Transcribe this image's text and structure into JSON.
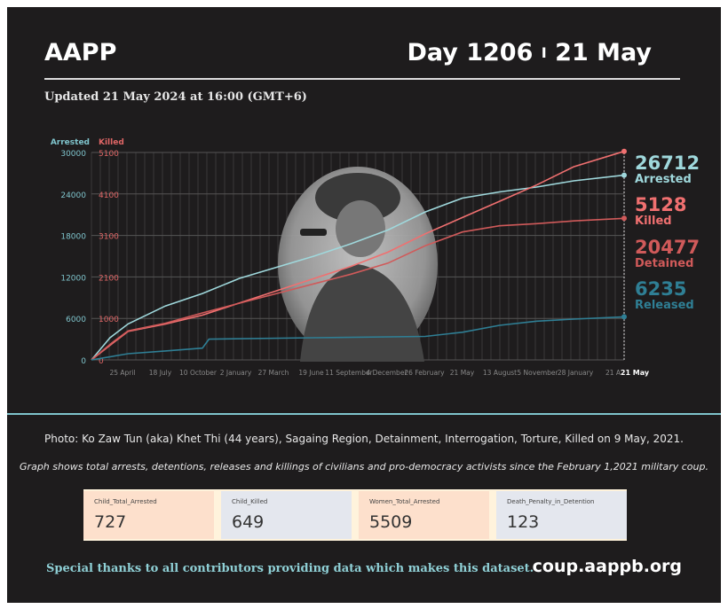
{
  "header": {
    "brand": "AAPP",
    "day": "Day 1206",
    "sep": "I",
    "date": "21 May",
    "updated": "Updated 21 May 2024 at 16:00 (GMT+6)"
  },
  "captions": {
    "photo": "Photo: Ko Zaw Tun (aka) Khet Thi (44 years), Sagaing Region, Detainment, Interrogation, Torture, Killed on 9 May, 2021.",
    "graph": "Graph shows total arrests, detentions, releases and killings of civilians and pro-democracy activists since the February 1,2021 military coup."
  },
  "cards": [
    {
      "label": "Child_Total_Arrested",
      "value": "727",
      "color": "#fde0cc"
    },
    {
      "label": "Child_Killed",
      "value": "649",
      "color": "#e4e7ee"
    },
    {
      "label": "Women_Total_Arrested",
      "value": "5509",
      "color": "#fde0cc"
    },
    {
      "label": "Death_Penalty_in_Detention",
      "value": "123",
      "color": "#e4e7ee"
    }
  ],
  "footer": {
    "thanks": "Special thanks to all contributors providing data which makes this dataset.",
    "site": "coup.aappb.org"
  },
  "chart_data": {
    "type": "line",
    "grid": true,
    "x_range": [
      "2021-02-01",
      "2024-05-21"
    ],
    "left_axis": {
      "label": "Arrested",
      "ticks": [
        "0",
        "6000",
        "12000",
        "18000",
        "24000",
        "30000"
      ],
      "range": [
        0,
        30000
      ],
      "color": "#7fc4cc"
    },
    "right_axis": {
      "label": "Killed",
      "ticks": [
        "0",
        "1000",
        "2100",
        "3100",
        "4100",
        "5100"
      ],
      "range": [
        0,
        5100
      ],
      "color": "#e06666"
    },
    "x_ticks": [
      "25 April",
      "18 July",
      "10 October",
      "2 January",
      "27 March",
      "19 June",
      "11 September",
      "4 December",
      "26 February",
      "21 May",
      "13 August",
      "5 November",
      "28 January",
      "21 A",
      "21 May"
    ],
    "series": [
      {
        "name": "Arrested",
        "end_label": "26712",
        "color": "#9fd8dc",
        "axis": "left",
        "points": [
          [
            "2021-02-01",
            0
          ],
          [
            "2021-03-15",
            3200
          ],
          [
            "2021-04-25",
            5200
          ],
          [
            "2021-07-18",
            7800
          ],
          [
            "2021-10-10",
            9600
          ],
          [
            "2022-01-02",
            11800
          ],
          [
            "2022-03-27",
            13400
          ],
          [
            "2022-06-19",
            15000
          ],
          [
            "2022-09-11",
            16800
          ],
          [
            "2022-12-04",
            18800
          ],
          [
            "2023-02-26",
            21400
          ],
          [
            "2023-05-21",
            23400
          ],
          [
            "2023-08-13",
            24300
          ],
          [
            "2023-11-05",
            25000
          ],
          [
            "2024-01-28",
            25900
          ],
          [
            "2024-05-21",
            26712
          ]
        ]
      },
      {
        "name": "Killed",
        "end_label": "5128",
        "color": "#f07070",
        "axis": "right",
        "points": [
          [
            "2021-02-01",
            0
          ],
          [
            "2021-03-20",
            400
          ],
          [
            "2021-04-25",
            700
          ],
          [
            "2021-07-18",
            880
          ],
          [
            "2021-10-10",
            1100
          ],
          [
            "2022-01-02",
            1400
          ],
          [
            "2022-03-27",
            1700
          ],
          [
            "2022-06-19",
            2000
          ],
          [
            "2022-09-11",
            2300
          ],
          [
            "2022-12-04",
            2650
          ],
          [
            "2023-02-26",
            3100
          ],
          [
            "2023-05-21",
            3500
          ],
          [
            "2023-08-13",
            3900
          ],
          [
            "2023-11-05",
            4300
          ],
          [
            "2024-01-28",
            4750
          ],
          [
            "2024-05-21",
            5128
          ]
        ]
      },
      {
        "name": "Detained",
        "end_label": "20477",
        "color": "#d05a5a",
        "axis": "left",
        "points": [
          [
            "2021-02-01",
            0
          ],
          [
            "2021-03-20",
            2500
          ],
          [
            "2021-04-25",
            4200
          ],
          [
            "2021-07-18",
            5300
          ],
          [
            "2021-10-10",
            6800
          ],
          [
            "2022-01-02",
            8200
          ],
          [
            "2022-03-27",
            9600
          ],
          [
            "2022-06-19",
            11000
          ],
          [
            "2022-09-11",
            12400
          ],
          [
            "2022-12-04",
            14000
          ],
          [
            "2023-02-26",
            16500
          ],
          [
            "2023-05-21",
            18500
          ],
          [
            "2023-08-13",
            19400
          ],
          [
            "2023-11-05",
            19700
          ],
          [
            "2024-01-28",
            20100
          ],
          [
            "2024-05-21",
            20477
          ]
        ]
      },
      {
        "name": "Released",
        "end_label": "6235",
        "color": "#2f7f95",
        "axis": "left",
        "points": [
          [
            "2021-02-01",
            0
          ],
          [
            "2021-04-25",
            900
          ],
          [
            "2021-07-18",
            1300
          ],
          [
            "2021-10-10",
            1700
          ],
          [
            "2021-10-25",
            3000
          ],
          [
            "2022-06-19",
            3200
          ],
          [
            "2023-02-26",
            3400
          ],
          [
            "2023-05-21",
            4000
          ],
          [
            "2023-08-13",
            5000
          ],
          [
            "2023-11-05",
            5600
          ],
          [
            "2024-01-28",
            5900
          ],
          [
            "2024-05-21",
            6235
          ]
        ]
      }
    ]
  }
}
